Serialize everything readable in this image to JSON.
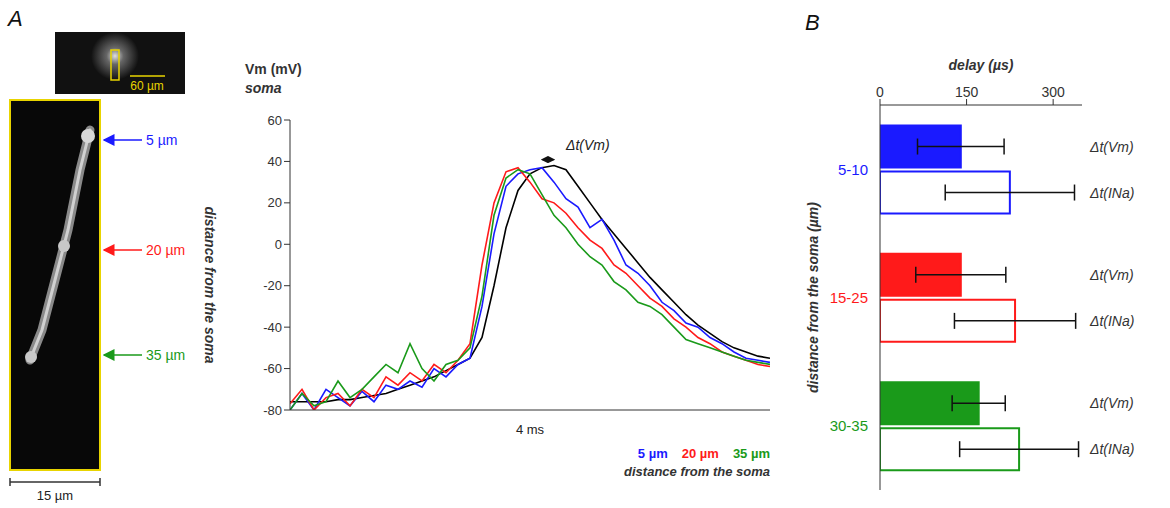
{
  "micrograph": {
    "scale_bar": "15 µm",
    "inset_scale_bar": "60 µm",
    "axis_label": "distance from the soma",
    "markers": [
      {
        "label": "5 µm",
        "color": "#1a1aff"
      },
      {
        "label": "20 µm",
        "color": "#ff1a1a"
      },
      {
        "label": "35 µm",
        "color": "#1a9a1a"
      }
    ]
  },
  "chart_data": [
    {
      "type": "line",
      "panel": "A",
      "title": "Vm (mV)",
      "x_label": "4 ms",
      "tick_labels": "y",
      "legend": "bottom right",
      "annotations": [
        "Δt(Vm)",
        "distance from the soma"
      ],
      "xlim": [
        0,
        4
      ],
      "ylim": [
        -80,
        60
      ],
      "yticks": [
        -80,
        -60,
        -40,
        -20,
        0,
        20,
        40,
        60
      ],
      "x": [
        0,
        0.1,
        0.2,
        0.3,
        0.4,
        0.5,
        0.6,
        0.7,
        0.8,
        0.9,
        1,
        1.1,
        1.2,
        1.3,
        1.4,
        1.5,
        1.6,
        1.7,
        1.8,
        1.9,
        2,
        2.1,
        2.2,
        2.3,
        2.4,
        2.5,
        2.6,
        2.7,
        2.8,
        2.9,
        3,
        3.1,
        3.2,
        3.3,
        3.4,
        3.5,
        3.6,
        3.7,
        3.8,
        3.9,
        4
      ],
      "series": [
        {
          "name": "soma",
          "color": "#000000",
          "values": [
            -76,
            -76,
            -76,
            -76,
            -75,
            -75,
            -74,
            -73,
            -72,
            -70,
            -68,
            -66,
            -64,
            -61,
            -58,
            -55,
            -45,
            -20,
            8,
            26,
            34,
            37,
            38,
            36,
            28,
            20,
            12,
            5,
            -2,
            -9,
            -16,
            -22,
            -28,
            -34,
            -39,
            -43,
            -47,
            -50,
            -52,
            -54,
            -55
          ]
        },
        {
          "name": "5 µm",
          "color": "#1a1aff",
          "values": [
            -80,
            -72,
            -80,
            -70,
            -74,
            -78,
            -71,
            -76,
            -68,
            -70,
            -66,
            -69,
            -60,
            -64,
            -58,
            -55,
            -30,
            5,
            28,
            34,
            36,
            37,
            30,
            22,
            18,
            8,
            12,
            2,
            -10,
            -14,
            -20,
            -28,
            -32,
            -38,
            -40,
            -45,
            -48,
            -52,
            -55,
            -56,
            -57
          ]
        },
        {
          "name": "20 µm",
          "color": "#ff1a1a",
          "values": [
            -77,
            -70,
            -80,
            -74,
            -72,
            -78,
            -70,
            -74,
            -64,
            -68,
            -62,
            -66,
            -58,
            -62,
            -56,
            -48,
            -10,
            20,
            35,
            37,
            30,
            22,
            20,
            15,
            8,
            2,
            -2,
            -10,
            -14,
            -20,
            -26,
            -30,
            -36,
            -40,
            -45,
            -48,
            -52,
            -54,
            -56,
            -58,
            -59
          ]
        },
        {
          "name": "35 µm",
          "color": "#1a9a1a",
          "values": [
            -80,
            -72,
            -78,
            -76,
            -66,
            -74,
            -70,
            -64,
            -58,
            -62,
            -48,
            -60,
            -66,
            -58,
            -56,
            -50,
            -25,
            14,
            32,
            36,
            34,
            24,
            14,
            8,
            0,
            -6,
            -10,
            -18,
            -22,
            -28,
            -30,
            -34,
            -40,
            -46,
            -48,
            -50,
            -52,
            -54,
            -56,
            -57,
            -58
          ]
        }
      ]
    },
    {
      "type": "bar",
      "panel": "B",
      "orientation": "horizontal",
      "x_label": "delay (µs)",
      "y_label": "distance from the soma (µm)",
      "xlim": [
        0,
        350
      ],
      "xticks": [
        0,
        150,
        300
      ],
      "categories": [
        "5-10",
        "15-25",
        "30-35"
      ],
      "series": [
        {
          "name": "Δt(Vm)",
          "marker": "filled",
          "colors": [
            "#1a1aff",
            "#ff1a1a",
            "#1a9a1a"
          ],
          "values": [
            140,
            140,
            171
          ],
          "errors": [
            75,
            78,
            46
          ]
        },
        {
          "name": "Δt(INa)",
          "marker": "hollow",
          "colors": [
            "#1a1aff",
            "#ff1a1a",
            "#1a9a1a"
          ],
          "values": [
            225,
            234,
            241
          ],
          "errors": [
            112,
            105,
            103
          ]
        }
      ]
    }
  ]
}
